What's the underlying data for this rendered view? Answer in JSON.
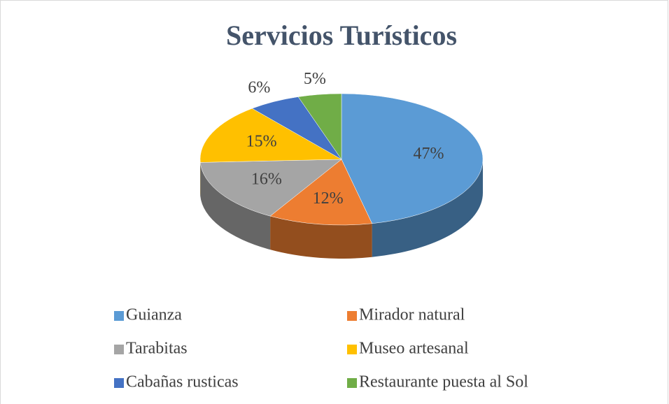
{
  "chart_data": {
    "type": "pie3d",
    "title": "Servicios Turísticos",
    "categories": [
      "Guianza",
      "Mirador natural",
      "Tarabitas",
      "Museo artesanal",
      "Cabañas rusticas",
      "Restaurante puesta al Sol"
    ],
    "values": [
      47,
      12,
      16,
      15,
      6,
      5
    ],
    "value_labels": [
      "47%",
      "12%",
      "16%",
      "15%",
      "6%",
      "5%"
    ],
    "colors": [
      "#5b9bd5",
      "#ed7d31",
      "#a5a5a5",
      "#ffc000",
      "#4472c4",
      "#70ad47"
    ],
    "legend": "bottom"
  }
}
